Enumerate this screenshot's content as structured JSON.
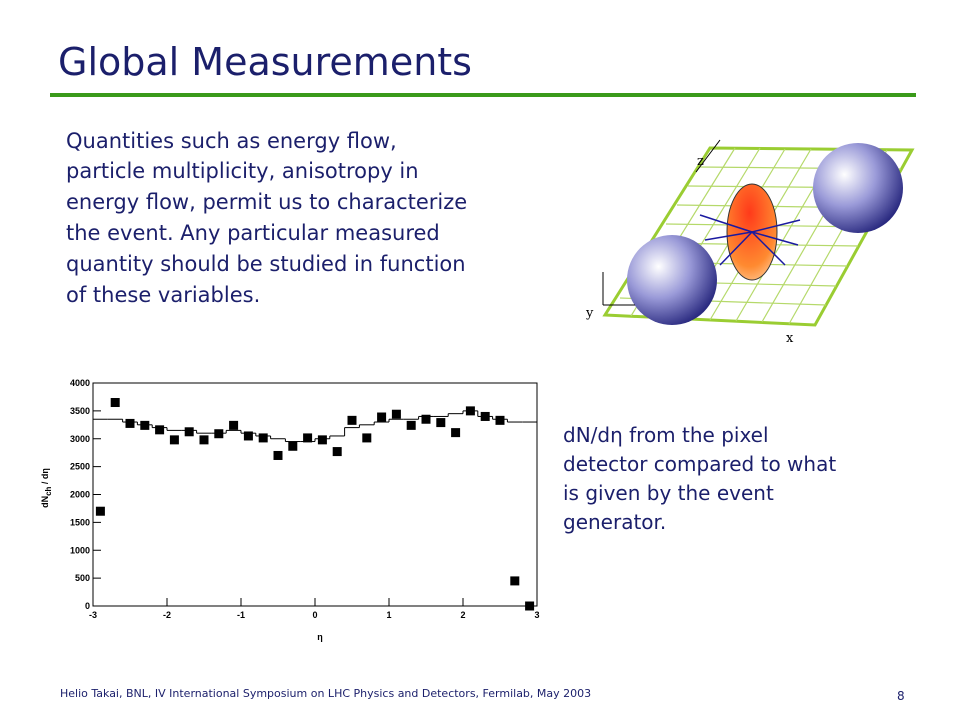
{
  "title": "Global Measurements",
  "body": [
    "Quantities such as energy flow,",
    "particle multiplicity, anisotropy in",
    "energy flow, permit us to characterize",
    "the event. Any particular measured",
    "quantity should be studied in function",
    "of these variables."
  ],
  "diagram": {
    "axes": [
      "z",
      "y",
      "x"
    ]
  },
  "caption": [
    "dN/dη from the pixel",
    "detector compared to what",
    "is given by the event",
    "generator."
  ],
  "footer": "Helio Takai, BNL, IV International Symposium on LHC Physics and Detectors, Fermilab, May 2003",
  "page_number": "8",
  "chart_data": {
    "type": "scatter",
    "x": [
      -2.9,
      -2.7,
      -2.5,
      -2.3,
      -2.1,
      -1.9,
      -1.7,
      -1.5,
      -1.3,
      -1.1,
      -0.9,
      -0.7,
      -0.5,
      -0.3,
      -0.1,
      0.1,
      0.3,
      0.5,
      0.7,
      0.9,
      1.1,
      1.3,
      1.5,
      1.7,
      1.9,
      2.1,
      2.3,
      2.5,
      2.7,
      2.9
    ],
    "values": [
      1700,
      3650,
      3275,
      3240,
      3160,
      2980,
      3125,
      2980,
      3090,
      3240,
      3050,
      3015,
      2700,
      2865,
      3015,
      2980,
      2770,
      3330,
      3015,
      3390,
      3440,
      3240,
      3350,
      3290,
      3110,
      3500,
      3400,
      3330,
      450,
      0
    ],
    "step_values": [
      3350,
      3350,
      3300,
      3250,
      3200,
      3150,
      3150,
      3100,
      3100,
      3150,
      3100,
      3050,
      3000,
      2950,
      2950,
      3000,
      3050,
      3200,
      3250,
      3300,
      3350,
      3350,
      3400,
      3400,
      3450,
      3500,
      3400,
      3350,
      3300,
      3300
    ],
    "color": "#000000",
    "xlim": [
      -3,
      3
    ],
    "ylim": [
      0,
      4000
    ],
    "xticks": [
      -3,
      -2,
      -1,
      0,
      1,
      2,
      3
    ],
    "yticks": [
      0,
      500,
      1000,
      1500,
      2000,
      2500,
      3000,
      3500,
      4000
    ],
    "xlabel": "η",
    "ylabel": {
      "main": "dN",
      "sub": "ch",
      "rest": " / dη"
    }
  }
}
